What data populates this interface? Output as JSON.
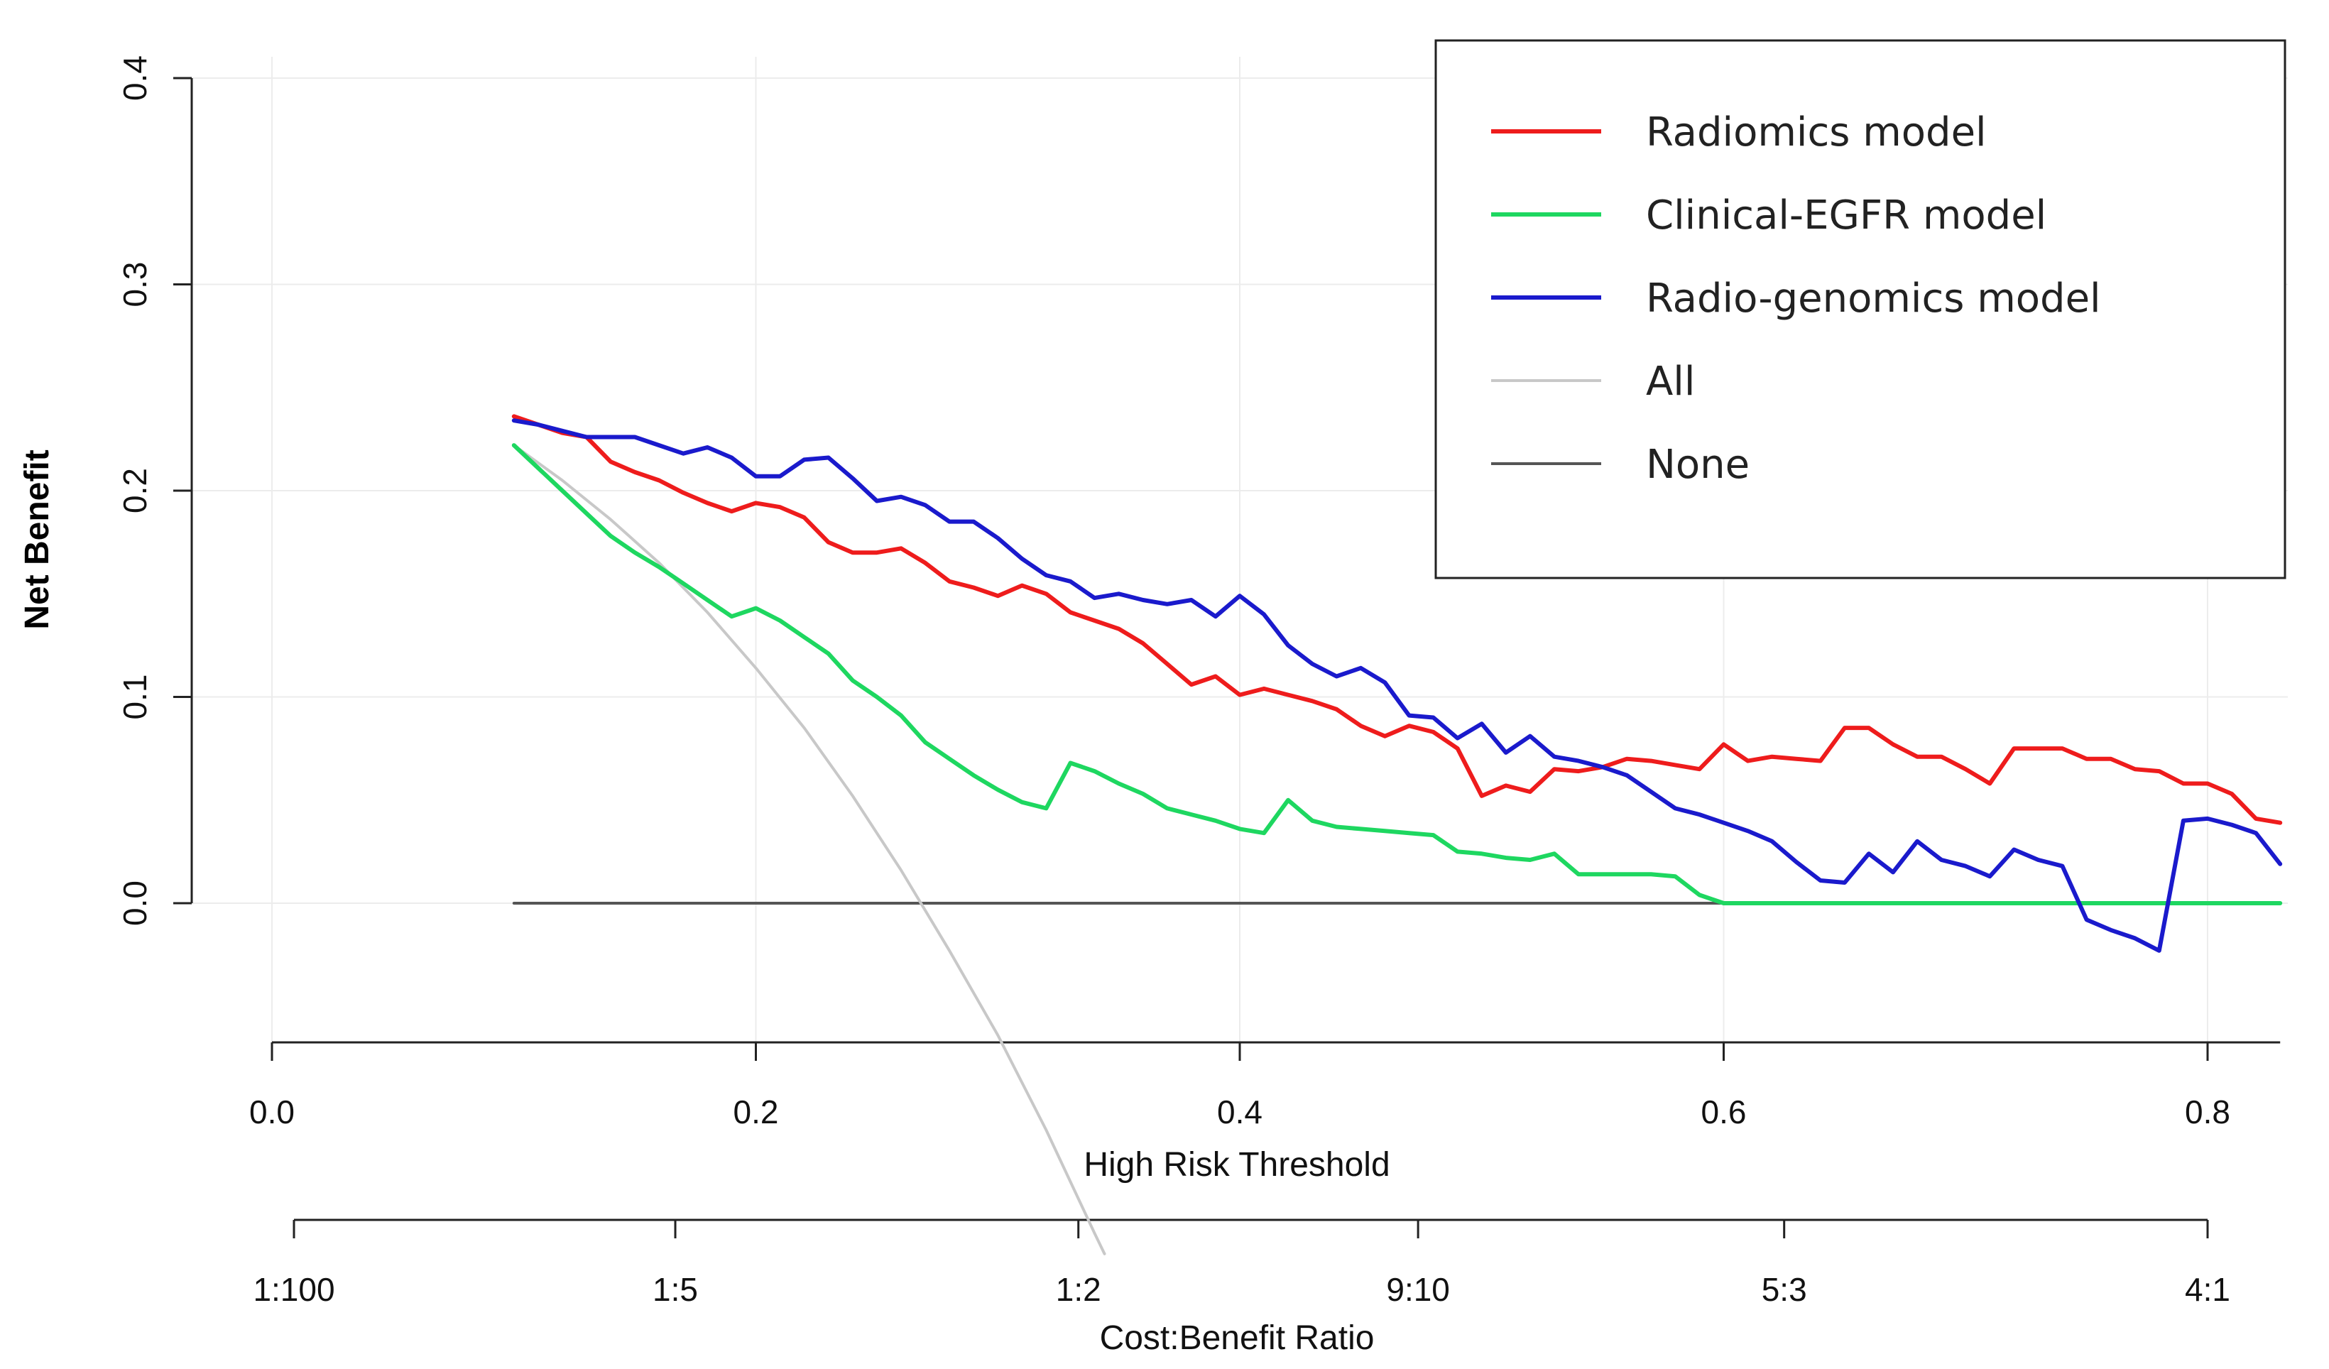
{
  "chart_data": {
    "type": "line",
    "title": "",
    "xlabel": "High Risk Threshold",
    "ylabel": "Net Benefit",
    "secondary_xlabel": "Cost:Benefit Ratio",
    "xlim": [
      0.0,
      0.83
    ],
    "ylim": [
      -0.07,
      0.4
    ],
    "x_ticks": [
      {
        "value": 0.0,
        "label": "0.0"
      },
      {
        "value": 0.2,
        "label": "0.2"
      },
      {
        "value": 0.4,
        "label": "0.4"
      },
      {
        "value": 0.6,
        "label": "0.6"
      },
      {
        "value": 0.8,
        "label": "0.8"
      }
    ],
    "y_ticks": [
      {
        "value": 0.0,
        "label": "0.0"
      },
      {
        "value": 0.1,
        "label": "0.1"
      },
      {
        "value": 0.2,
        "label": "0.2"
      },
      {
        "value": 0.3,
        "label": "0.3"
      },
      {
        "value": 0.4,
        "label": "0.4"
      }
    ],
    "secondary_ticks": [
      {
        "value": 0.01,
        "label": "1:100"
      },
      {
        "value": 0.1667,
        "label": "1:5"
      },
      {
        "value": 0.3333,
        "label": "1:2"
      },
      {
        "value": 0.4737,
        "label": "9:10"
      },
      {
        "value": 0.625,
        "label": "5:3"
      },
      {
        "value": 0.8,
        "label": "4:1"
      }
    ],
    "grid": true,
    "legend_position": "top-right",
    "series": [
      {
        "name": "Radiomics model",
        "color": "#ee1c1c",
        "x": [
          0.1,
          0.11,
          0.12,
          0.13,
          0.14,
          0.15,
          0.16,
          0.17,
          0.18,
          0.19,
          0.2,
          0.21,
          0.22,
          0.23,
          0.24,
          0.25,
          0.26,
          0.27,
          0.28,
          0.29,
          0.3,
          0.31,
          0.32,
          0.33,
          0.34,
          0.35,
          0.36,
          0.37,
          0.38,
          0.39,
          0.4,
          0.41,
          0.42,
          0.43,
          0.44,
          0.45,
          0.46,
          0.47,
          0.48,
          0.49,
          0.5,
          0.51,
          0.52,
          0.53,
          0.54,
          0.55,
          0.56,
          0.57,
          0.58,
          0.59,
          0.6,
          0.61,
          0.62,
          0.63,
          0.64,
          0.65,
          0.66,
          0.67,
          0.68,
          0.69,
          0.7,
          0.71,
          0.72,
          0.73,
          0.74,
          0.75,
          0.76,
          0.77,
          0.78,
          0.79,
          0.8,
          0.81,
          0.82,
          0.83
        ],
        "y": [
          0.236,
          0.232,
          0.228,
          0.226,
          0.214,
          0.209,
          0.205,
          0.199,
          0.194,
          0.19,
          0.194,
          0.192,
          0.187,
          0.175,
          0.17,
          0.17,
          0.172,
          0.165,
          0.156,
          0.153,
          0.149,
          0.154,
          0.15,
          0.141,
          0.137,
          0.133,
          0.126,
          0.116,
          0.106,
          0.11,
          0.101,
          0.104,
          0.101,
          0.098,
          0.094,
          0.086,
          0.081,
          0.086,
          0.083,
          0.075,
          0.052,
          0.057,
          0.054,
          0.065,
          0.064,
          0.066,
          0.07,
          0.069,
          0.067,
          0.065,
          0.077,
          0.069,
          0.071,
          0.07,
          0.069,
          0.085,
          0.085,
          0.077,
          0.071,
          0.071,
          0.065,
          0.058,
          0.075,
          0.075,
          0.075,
          0.07,
          0.07,
          0.065,
          0.064,
          0.058,
          0.058,
          0.053,
          0.041,
          0.039
        ]
      },
      {
        "name": "Clinical-EGFR model",
        "color": "#1ed760",
        "x": [
          0.1,
          0.11,
          0.12,
          0.13,
          0.14,
          0.15,
          0.16,
          0.17,
          0.18,
          0.19,
          0.2,
          0.21,
          0.22,
          0.23,
          0.24,
          0.25,
          0.26,
          0.27,
          0.28,
          0.29,
          0.3,
          0.31,
          0.32,
          0.33,
          0.34,
          0.35,
          0.36,
          0.37,
          0.38,
          0.39,
          0.4,
          0.41,
          0.42,
          0.43,
          0.44,
          0.45,
          0.46,
          0.47,
          0.48,
          0.49,
          0.5,
          0.51,
          0.52,
          0.53,
          0.54,
          0.55,
          0.56,
          0.57,
          0.58,
          0.59,
          0.6,
          0.65,
          0.7,
          0.75,
          0.8,
          0.83
        ],
        "y": [
          0.222,
          0.211,
          0.2,
          0.189,
          0.178,
          0.17,
          0.163,
          0.155,
          0.147,
          0.139,
          0.143,
          0.137,
          0.129,
          0.121,
          0.108,
          0.1,
          0.091,
          0.078,
          0.07,
          0.062,
          0.055,
          0.049,
          0.046,
          0.068,
          0.064,
          0.058,
          0.053,
          0.046,
          0.043,
          0.04,
          0.036,
          0.034,
          0.05,
          0.04,
          0.037,
          0.036,
          0.035,
          0.034,
          0.033,
          0.025,
          0.024,
          0.022,
          0.021,
          0.024,
          0.014,
          0.014,
          0.014,
          0.014,
          0.013,
          0.004,
          0.0,
          0.0,
          0.0,
          0.0,
          0.0,
          0.0
        ]
      },
      {
        "name": "Radio-genomics model",
        "color": "#1a1acc",
        "x": [
          0.1,
          0.11,
          0.12,
          0.13,
          0.14,
          0.15,
          0.16,
          0.17,
          0.18,
          0.19,
          0.2,
          0.21,
          0.22,
          0.23,
          0.24,
          0.25,
          0.26,
          0.27,
          0.28,
          0.29,
          0.3,
          0.31,
          0.32,
          0.33,
          0.34,
          0.35,
          0.36,
          0.37,
          0.38,
          0.39,
          0.4,
          0.41,
          0.42,
          0.43,
          0.44,
          0.45,
          0.46,
          0.47,
          0.48,
          0.49,
          0.5,
          0.51,
          0.52,
          0.53,
          0.54,
          0.55,
          0.56,
          0.57,
          0.58,
          0.59,
          0.6,
          0.61,
          0.62,
          0.63,
          0.64,
          0.65,
          0.66,
          0.67,
          0.68,
          0.69,
          0.7,
          0.71,
          0.72,
          0.73,
          0.74,
          0.75,
          0.76,
          0.77,
          0.78,
          0.79,
          0.8,
          0.81,
          0.82,
          0.83
        ],
        "y": [
          0.234,
          0.232,
          0.229,
          0.226,
          0.226,
          0.226,
          0.222,
          0.218,
          0.221,
          0.216,
          0.207,
          0.207,
          0.215,
          0.216,
          0.206,
          0.195,
          0.197,
          0.193,
          0.185,
          0.185,
          0.177,
          0.167,
          0.159,
          0.156,
          0.148,
          0.15,
          0.147,
          0.145,
          0.147,
          0.139,
          0.149,
          0.14,
          0.125,
          0.116,
          0.11,
          0.114,
          0.107,
          0.091,
          0.09,
          0.08,
          0.087,
          0.073,
          0.081,
          0.071,
          0.069,
          0.066,
          0.062,
          0.054,
          0.046,
          0.043,
          0.039,
          0.035,
          0.03,
          0.02,
          0.011,
          0.01,
          0.024,
          0.015,
          0.03,
          0.021,
          0.018,
          0.013,
          0.026,
          0.021,
          0.018,
          -0.008,
          -0.013,
          -0.017,
          -0.023,
          0.04,
          0.041,
          0.038,
          0.034,
          0.019
        ]
      },
      {
        "name": "All",
        "color": "#c8c8c8",
        "x": [
          0.1,
          0.12,
          0.14,
          0.16,
          0.18,
          0.2,
          0.22,
          0.24,
          0.26,
          0.28,
          0.3,
          0.32,
          0.34,
          0.3441
        ],
        "y": [
          0.222,
          0.205,
          0.186,
          0.165,
          0.141,
          0.114,
          0.085,
          0.052,
          0.016,
          -0.023,
          -0.064,
          -0.11,
          -0.16,
          -0.17
        ]
      },
      {
        "name": "None",
        "color": "#555555",
        "x": [
          0.1,
          0.83
        ],
        "y": [
          0.0,
          0.0
        ]
      }
    ]
  }
}
